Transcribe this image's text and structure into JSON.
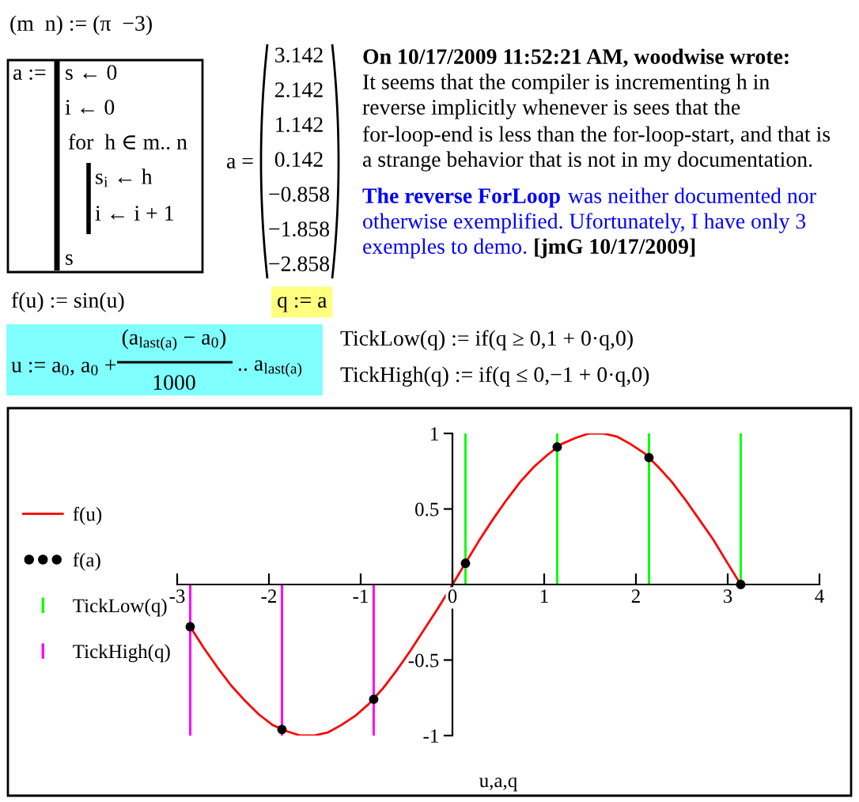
{
  "chart_data": {
    "type": "line",
    "xlabel": "u,a,q",
    "xlim": [
      -3,
      4
    ],
    "xticks": [
      -3,
      -2,
      -1,
      0,
      1,
      2,
      3,
      4
    ],
    "ylim": [
      -1,
      1
    ],
    "yticks": [
      -1,
      -0.5,
      0.5,
      1
    ],
    "legend": "left",
    "series": [
      {
        "name": "f(u)",
        "color": "#ff0000",
        "x": [
          -2.858,
          -2.71,
          -2.56,
          -2.41,
          -2.26,
          -2.11,
          -1.96,
          -1.81,
          -1.66,
          -1.51,
          -1.36,
          -1.21,
          -1.06,
          -0.91,
          -0.76,
          -0.61,
          -0.46,
          -0.31,
          -0.16,
          -0.01,
          0.14,
          0.29,
          0.44,
          0.59,
          0.74,
          0.89,
          1.04,
          1.19,
          1.34,
          1.49,
          1.64,
          1.79,
          1.94,
          2.09,
          2.24,
          2.39,
          2.54,
          2.69,
          2.84,
          2.99,
          3.142
        ],
        "values": [
          -0.28,
          -0.42,
          -0.55,
          -0.67,
          -0.77,
          -0.86,
          -0.93,
          -0.97,
          -1.0,
          -1.0,
          -0.98,
          -0.93,
          -0.87,
          -0.79,
          -0.69,
          -0.57,
          -0.44,
          -0.3,
          -0.16,
          -0.01,
          0.14,
          0.29,
          0.43,
          0.56,
          0.68,
          0.78,
          0.86,
          0.93,
          0.97,
          1.0,
          1.0,
          0.98,
          0.93,
          0.87,
          0.78,
          0.68,
          0.56,
          0.43,
          0.3,
          0.15,
          0.0
        ]
      },
      {
        "name": "f(a)",
        "type": "scatter",
        "color": "#000000",
        "marker": "circle",
        "x": [
          3.142,
          2.142,
          1.142,
          0.142,
          -0.858,
          -1.858,
          -2.858
        ],
        "values": [
          0.0,
          0.84,
          0.91,
          0.14,
          -0.76,
          -0.96,
          -0.28
        ]
      },
      {
        "name": "TickLow(q)",
        "type": "bar",
        "color": "#00ff00",
        "x": [
          3.142,
          2.142,
          1.142,
          0.142
        ],
        "values": [
          1,
          1,
          1,
          1
        ]
      },
      {
        "name": "TickHigh(q)",
        "type": "bar",
        "color": "#ff00ff",
        "x": [
          -0.858,
          -1.858,
          -2.858
        ],
        "values": [
          -1,
          -1,
          -1
        ]
      }
    ],
    "annotations": [
      "(m  n) := (π  −3)",
      "a :=",
      "s ← 0",
      "i ← 0",
      "for  h ∈ m.. n",
      "s$_{i}$ ← h",
      "i ← i + 1",
      "s",
      "a =",
      "3.142",
      "2.142",
      "1.142",
      "0.142",
      "−0.858",
      "−1.858",
      "−2.858",
      "On 10/17/2009 11:52:21 AM, woodwise wrote:",
      "It seems that the compiler is incrementing h in",
      "reverse implicitly whenever is sees that the",
      "for-loop-end is less than the for-loop-start, and that is",
      "a strange behavior that is not in my documentation.",
      "The reverse ForLoop",
      "was neither documented nor",
      "otherwise exemplified. Ufortunately, I have only 3",
      "exemples to demo.",
      "[jmG 10/17/2009]",
      "f(u) := sin(u)",
      "q := a",
      "u := a$_{0}$, a$_{0}$ +",
      "(a$_{last(a)}$ − a$_{0}$)",
      "1000",
      ".. a$_{last(a)}$",
      "TickLow(q) := if(q ≥ 0,1 + 0·q,0)",
      "TickHigh(q) := if(q ≤ 0,−1 + 0·q,0)"
    ]
  }
}
